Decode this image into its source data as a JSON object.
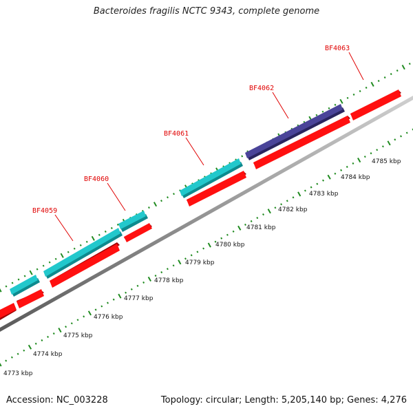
{
  "title": "Bacteroides fragilis NCTC 9343, complete genome",
  "footer": {
    "accession": "Accession: NC_003228",
    "summary": "Topology: circular; Length: 5,205,140 bp; Genes: 4,276"
  },
  "colors": {
    "forward_gene": "#22c8cc",
    "forward_gene_highlight": "#4a4499",
    "reverse_gene": "#ff1010",
    "backbone": "#8f8f8f",
    "ticks": "#1f8a1f",
    "gene_label": "#e00000"
  },
  "genes": [
    {
      "label": "BF4059"
    },
    {
      "label": "BF4060"
    },
    {
      "label": "BF4061"
    },
    {
      "label": "BF4062"
    },
    {
      "label": "BF4063"
    }
  ],
  "scale": {
    "tick_labels": [
      "4773 kbp",
      "4774 kbp",
      "4775 kbp",
      "4776 kbp",
      "4777 kbp",
      "4778 kbp",
      "4779 kbp",
      "4780 kbp",
      "4781 kbp",
      "4782 kbp",
      "4783 kbp",
      "4784 kbp",
      "4785 kbp"
    ]
  }
}
